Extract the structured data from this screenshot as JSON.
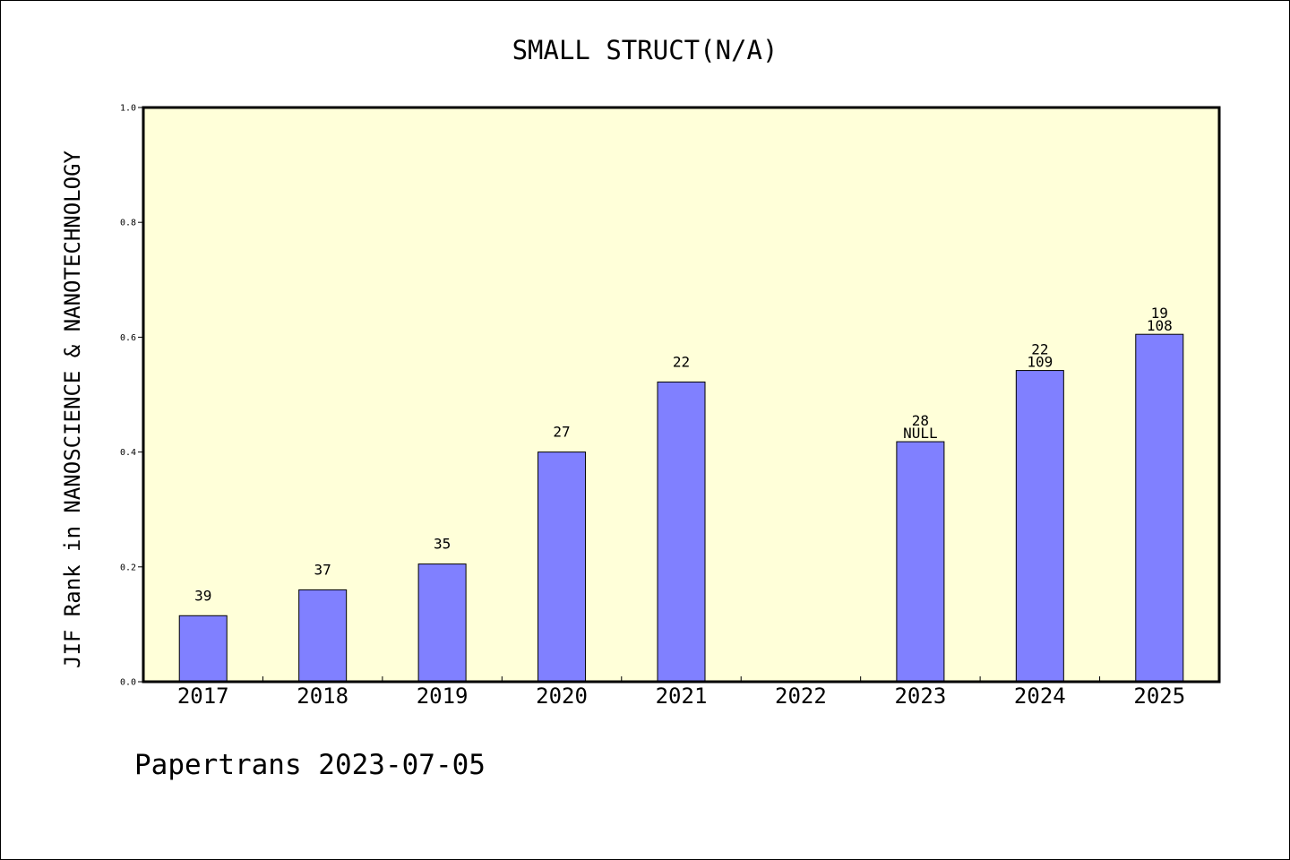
{
  "chart_data": {
    "type": "bar",
    "title": "SMALL STRUCT(N/A)",
    "xlabel": "",
    "ylabel": "JIF Rank in NANOSCIENCE & NANOTECHNOLOGY",
    "ylim": [
      0,
      1.0
    ],
    "yticks": [
      "0.0",
      "0.2",
      "0.4",
      "0.6",
      "0.8",
      "1.0"
    ],
    "categories": [
      "2017",
      "2018",
      "2019",
      "2020",
      "2021",
      "2022",
      "2023",
      "2024",
      "2025"
    ],
    "values": [
      0.115,
      0.16,
      0.205,
      0.4,
      0.522,
      null,
      0.418,
      0.542,
      0.605
    ],
    "bar_labels": [
      [
        "39"
      ],
      [
        "37"
      ],
      [
        "35"
      ],
      [
        "27"
      ],
      [
        "22"
      ],
      [],
      [
        "28",
        "NULL"
      ],
      [
        "22",
        "109"
      ],
      [
        "19",
        "108"
      ]
    ],
    "grid": false,
    "colors": {
      "bar_fill": "#8080ff",
      "plot_background": "#ffffd9"
    }
  },
  "footer": {
    "note": "Papertrans 2023-07-05"
  }
}
